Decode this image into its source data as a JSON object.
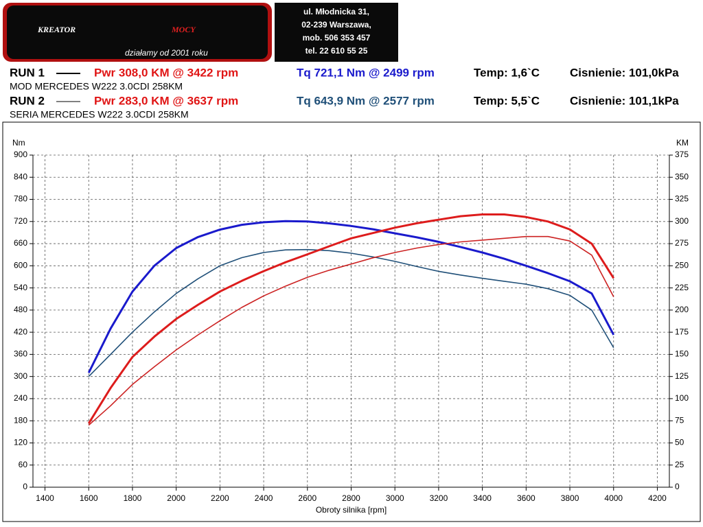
{
  "logo": {
    "brand": "KREATOR",
    "brand2": "MOCY",
    "tagline": "działamy od 2001 roku"
  },
  "address": [
    "ul. Młodnicka 31,",
    "02-239  Warszawa,",
    "mob.  506 353 457",
    "tel.  22 610 55 25"
  ],
  "runs": [
    {
      "label": "RUN 1",
      "power": "Pwr  308,0 KM @ 3422 rpm",
      "torque": "Tq 721,1 Nm @ 2499 rpm",
      "temp": "Temp: 1,6`C",
      "pressure": "Cisnienie: 101,0kPa",
      "car": "MOD MERCEDES W222 3.0CDI 258KM"
    },
    {
      "label": "RUN 2",
      "power": "Pwr  283,0 KM @ 3637 rpm",
      "torque": "Tq 643,9 Nm @ 2577 rpm",
      "temp": "Temp: 5,5`C",
      "pressure": "Cisnienie: 101,1kPa",
      "car": "SERIA MERCEDES W222 3.0CDI 258KM"
    }
  ],
  "chart_data": {
    "type": "line",
    "x_label": "Obroty silnika [rpm]",
    "y_label": "Nm",
    "y2_label": "KM",
    "x": [
      1600,
      1700,
      1800,
      1900,
      2000,
      2100,
      2200,
      2300,
      2400,
      2500,
      2600,
      2700,
      2800,
      2900,
      3000,
      3100,
      3200,
      3300,
      3400,
      3500,
      3600,
      3700,
      3800,
      3900,
      4000
    ],
    "series": [
      {
        "color": "#1a1acc",
        "width": 3,
        "values": [
          310,
          430,
          530,
          600,
          648,
          678,
          698,
          711,
          718,
          721,
          720,
          715,
          708,
          699,
          688,
          677,
          665,
          651,
          636,
          619,
          600,
          580,
          558,
          525,
          413
        ]
      },
      {
        "color": "#1f4f78",
        "width": 1.6,
        "values": [
          300,
          360,
          420,
          475,
          525,
          565,
          600,
          622,
          636,
          643,
          644,
          641,
          634,
          624,
          612,
          598,
          585,
          575,
          566,
          558,
          550,
          538,
          520,
          480,
          378
        ]
      },
      {
        "color": "#dd1c1c",
        "width": 3,
        "axis": "y2",
        "values": [
          72,
          112,
          147,
          170,
          190,
          206,
          221,
          233,
          244,
          254,
          263,
          272,
          281,
          287,
          293,
          298,
          302,
          306,
          308,
          308,
          305,
          300,
          291,
          275,
          236
        ]
      },
      {
        "color": "#cc2222",
        "width": 1.6,
        "axis": "y2",
        "values": [
          70,
          92,
          116,
          136,
          155,
          172,
          188,
          203,
          216,
          227,
          237,
          245,
          252,
          259,
          265,
          270,
          274,
          277,
          279,
          281,
          283,
          283,
          278,
          262,
          215
        ]
      }
    ],
    "xlim": [
      1345,
      4255
    ],
    "xticks": [
      1400,
      1600,
      1800,
      2000,
      2200,
      2400,
      2600,
      2800,
      3000,
      3200,
      3400,
      3600,
      3800,
      4000,
      4200
    ],
    "ylim": [
      0,
      900
    ],
    "yticks": [
      0,
      60,
      120,
      180,
      240,
      300,
      360,
      420,
      480,
      540,
      600,
      660,
      720,
      780,
      840,
      900
    ],
    "y2lim": [
      0,
      375
    ],
    "y2ticks": [
      0,
      25,
      50,
      75,
      100,
      125,
      150,
      175,
      200,
      225,
      250,
      275,
      300,
      325,
      350,
      375
    ],
    "grid": true
  }
}
